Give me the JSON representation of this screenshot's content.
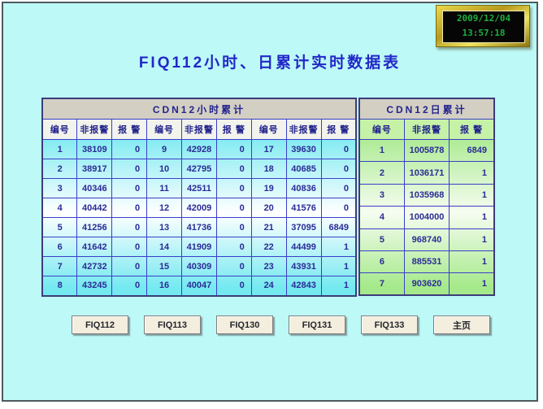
{
  "clock": {
    "date": "2009/12/04",
    "time": "13:57:18"
  },
  "title": "FIQ112小时、日累计实时数据表",
  "hourly_table": {
    "title": "CDN12小时累计",
    "columns": [
      "编号",
      "非报警",
      "报 警"
    ],
    "groups": 3,
    "rows": [
      [
        "1",
        "38109",
        "0",
        "9",
        "42928",
        "0",
        "17",
        "39630",
        "0"
      ],
      [
        "2",
        "38917",
        "0",
        "10",
        "42795",
        "0",
        "18",
        "40685",
        "0"
      ],
      [
        "3",
        "40346",
        "0",
        "11",
        "42511",
        "0",
        "19",
        "40836",
        "0"
      ],
      [
        "4",
        "40442",
        "0",
        "12",
        "42009",
        "0",
        "20",
        "41576",
        "0"
      ],
      [
        "5",
        "41256",
        "0",
        "13",
        "41736",
        "0",
        "21",
        "37095",
        "6849"
      ],
      [
        "6",
        "41642",
        "0",
        "14",
        "41909",
        "0",
        "22",
        "44499",
        "1"
      ],
      [
        "7",
        "42732",
        "0",
        "15",
        "40309",
        "0",
        "23",
        "43931",
        "1"
      ],
      [
        "8",
        "43245",
        "0",
        "16",
        "40047",
        "0",
        "24",
        "42843",
        "1"
      ]
    ]
  },
  "daily_table": {
    "title": "CDN12日累计",
    "columns": [
      "编号",
      "非报警",
      "报 警"
    ],
    "groups": 1,
    "rows": [
      [
        "1",
        "1005878",
        "6849"
      ],
      [
        "2",
        "1036171",
        "1"
      ],
      [
        "3",
        "1035968",
        "1"
      ],
      [
        "4",
        "1004000",
        "1"
      ],
      [
        "5",
        "968740",
        "1"
      ],
      [
        "6",
        "885531",
        "1"
      ],
      [
        "7",
        "903620",
        "1"
      ]
    ]
  },
  "buttons": [
    "FIQ112",
    "FIQ113",
    "FIQ130",
    "FIQ131",
    "FIQ133",
    "主页"
  ],
  "colors": {
    "background": "#bdf9f7",
    "grid_line": "#3a3ec9",
    "text_navy": "#2b2b96",
    "hour_cell_cyan": "#74e9f0",
    "day_cell_green": "#a5e98a",
    "header_band_gray": "#d3cfc3",
    "clock_text_green": "#1fae3e",
    "button_beige": "#f3eedd"
  }
}
